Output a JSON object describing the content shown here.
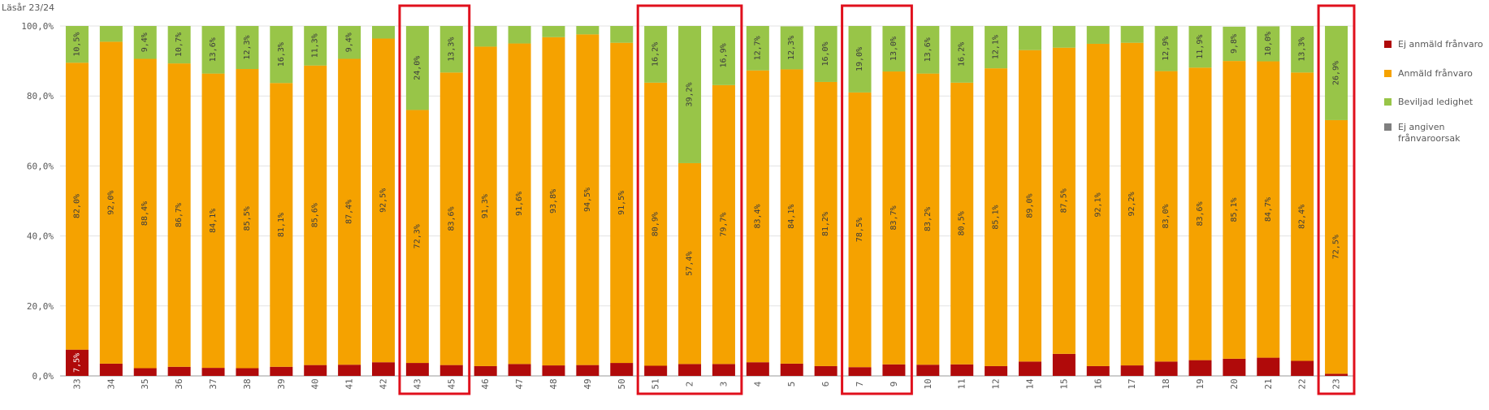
{
  "subtitle": "Läsår 23/24",
  "chart_data": {
    "type": "bar",
    "stacked": true,
    "percent": true,
    "ylim": [
      0,
      100
    ],
    "y_ticks": [
      "0,0%",
      "20,0%",
      "40,0%",
      "60,0%",
      "80,0%",
      "100,0%"
    ],
    "categories": [
      "33",
      "34",
      "35",
      "36",
      "37",
      "38",
      "39",
      "40",
      "41",
      "42",
      "43",
      "45",
      "46",
      "47",
      "48",
      "49",
      "50",
      "51",
      "2",
      "3",
      "4",
      "5",
      "6",
      "7",
      "9",
      "10",
      "11",
      "12",
      "14",
      "15",
      "16",
      "17",
      "18",
      "19",
      "20",
      "21",
      "22",
      "23"
    ],
    "series": [
      {
        "name": "Ej anmäld frånvaro",
        "color": "#b00a0a",
        "values": [
          7.5,
          3.5,
          2.2,
          2.6,
          2.3,
          2.2,
          2.6,
          3.1,
          3.2,
          3.9,
          3.7,
          3.1,
          2.8,
          3.4,
          3.0,
          3.1,
          3.7,
          2.9,
          3.4,
          3.4,
          3.9,
          3.5,
          2.8,
          2.5,
          3.3,
          3.2,
          3.3,
          2.8,
          4.1,
          6.3,
          2.8,
          3.0,
          4.1,
          4.5,
          4.9,
          5.2,
          4.3,
          0.6
        ],
        "labels": [
          "7,5%",
          "",
          "",
          "",
          "",
          "",
          "",
          "",
          "",
          "",
          "",
          "",
          "",
          "",
          "",
          "",
          "",
          "",
          "",
          "",
          "",
          "",
          "",
          "",
          "",
          "",
          "",
          "",
          "",
          "",
          "",
          "",
          "",
          "",
          "",
          "",
          "",
          ""
        ]
      },
      {
        "name": "Anmäld frånvaro",
        "color": "#f5a200",
        "values": [
          82.0,
          92.0,
          88.4,
          86.7,
          84.1,
          85.5,
          81.1,
          85.6,
          87.4,
          92.5,
          72.3,
          83.6,
          91.3,
          91.6,
          93.8,
          94.5,
          91.5,
          80.9,
          57.4,
          79.7,
          83.4,
          84.1,
          81.2,
          78.5,
          83.7,
          83.2,
          80.5,
          85.1,
          89.0,
          87.5,
          92.1,
          92.2,
          83.0,
          83.6,
          85.1,
          84.7,
          82.4,
          72.5
        ],
        "labels": [
          "82,0%",
          "92,0%",
          "88,4%",
          "86,7%",
          "84,1%",
          "85,5%",
          "81,1%",
          "85,6%",
          "87,4%",
          "92,5%",
          "72,3%",
          "83,6%",
          "91,3%",
          "91,6%",
          "93,8%",
          "94,5%",
          "91,5%",
          "80,9%",
          "57,4%",
          "79,7%",
          "83,4%",
          "84,1%",
          "81,2%",
          "78,5%",
          "83,7%",
          "83,2%",
          "80,5%",
          "85,1%",
          "89,0%",
          "87,5%",
          "92,1%",
          "92,2%",
          "83,0%",
          "83,6%",
          "85,1%",
          "84,7%",
          "82,4%",
          "72,5%"
        ]
      },
      {
        "name": "Beviljad ledighet",
        "color": "#98c548",
        "values": [
          10.5,
          4.5,
          9.4,
          10.7,
          13.6,
          12.3,
          16.3,
          11.3,
          9.4,
          3.6,
          24.0,
          13.3,
          5.9,
          5.0,
          3.2,
          2.4,
          4.8,
          16.2,
          39.2,
          16.9,
          12.7,
          12.3,
          16.0,
          19.0,
          13.0,
          13.6,
          16.2,
          12.1,
          6.9,
          6.2,
          5.1,
          4.8,
          12.9,
          11.9,
          9.8,
          10.0,
          13.3,
          26.9
        ],
        "labels": [
          "10,5%",
          "",
          "9,4%",
          "10,7%",
          "13,6%",
          "12,3%",
          "16,3%",
          "11,3%",
          "9,4%",
          "",
          "24,0%",
          "13,3%",
          "",
          "",
          "",
          "",
          "",
          "16,2%",
          "39,2%",
          "16,9%",
          "12,7%",
          "12,3%",
          "16,0%",
          "19,0%",
          "13,0%",
          "13,6%",
          "16,2%",
          "12,1%",
          "",
          "",
          "",
          "",
          "12,9%",
          "11,9%",
          "9,8%",
          "10,0%",
          "13,3%",
          "26,9%"
        ]
      },
      {
        "name": "Ej angiven frånvaroorsak",
        "color": "#7f7f7f",
        "values": [
          0,
          0,
          0,
          0,
          0,
          0,
          0,
          0,
          0,
          0,
          0,
          0,
          0,
          0,
          0,
          0,
          0,
          0,
          0,
          0,
          0,
          0,
          0,
          0,
          0,
          0,
          0,
          0,
          0,
          0,
          0,
          0,
          0,
          0,
          0,
          0,
          0,
          0
        ],
        "labels": []
      }
    ],
    "highlight_groups": [
      [
        10,
        11
      ],
      [
        17,
        19
      ],
      [
        23,
        24
      ],
      [
        37,
        37
      ]
    ],
    "highlight_color": "#e0101c",
    "legend_position": "right",
    "grid": true
  }
}
